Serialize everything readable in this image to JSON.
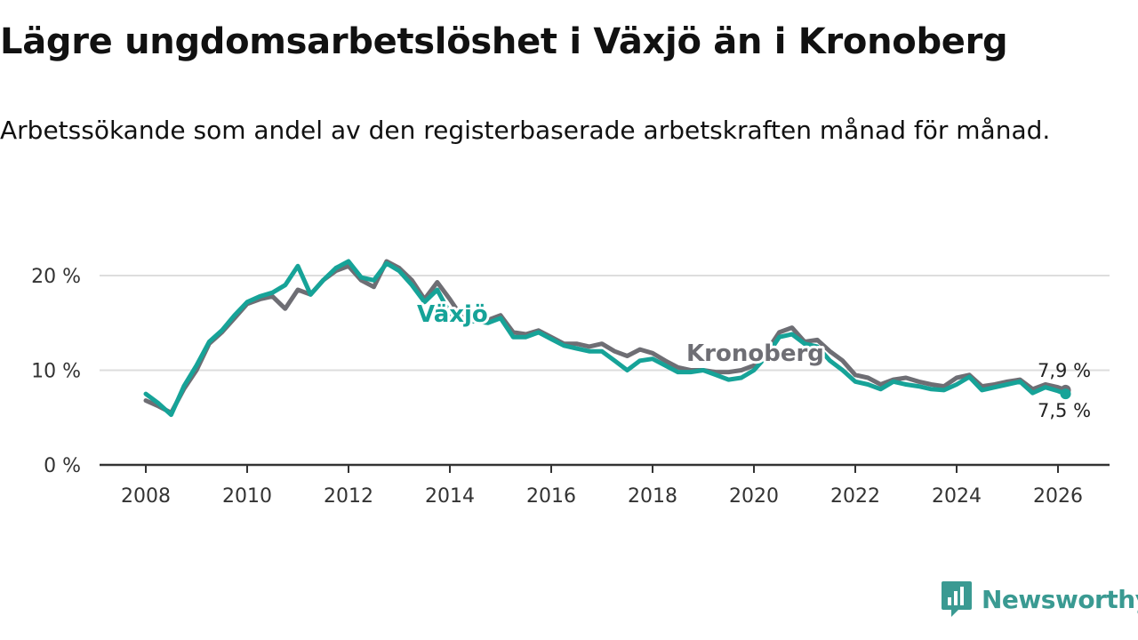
{
  "title": "Lägre ungdomsarbetslöshet i Växjö än i Kronoberg",
  "subtitle": "Arbetssökande som andel av den registerbaserade arbetskraften månad för månad.",
  "brand": {
    "name": "Newsworthy",
    "icon": "chart-bubble-icon",
    "color": "#3a9a92"
  },
  "colors": {
    "vaxjo": "#16a398",
    "kronoberg": "#6e6e74",
    "grid": "#dddddd",
    "axis": "#333333"
  },
  "chart_data": {
    "type": "line",
    "title": "Lägre ungdomsarbetslöshet i Växjö än i Kronoberg",
    "xlabel": "",
    "ylabel": "",
    "xlim": [
      2007.5,
      2026.5
    ],
    "ylim": [
      0,
      22
    ],
    "y_ticks": [
      0,
      10,
      20
    ],
    "y_tick_labels": [
      "0 %",
      "10 %",
      "20 %"
    ],
    "x_ticks": [
      2008,
      2010,
      2012,
      2014,
      2016,
      2018,
      2020,
      2022,
      2024,
      2026
    ],
    "x_tick_labels": [
      "2008",
      "2010",
      "2012",
      "2014",
      "2016",
      "2018",
      "2020",
      "2022",
      "2024",
      "2026"
    ],
    "series": [
      {
        "name": "Kronoberg",
        "label": "Kronoberg",
        "end_label": "7,9 %",
        "x": [
          2008.0,
          2008.25,
          2008.5,
          2008.75,
          2009.0,
          2009.25,
          2009.5,
          2009.75,
          2010.0,
          2010.25,
          2010.5,
          2010.75,
          2011.0,
          2011.25,
          2011.5,
          2011.75,
          2012.0,
          2012.25,
          2012.5,
          2012.75,
          2013.0,
          2013.25,
          2013.5,
          2013.75,
          2014.0,
          2014.25,
          2014.5,
          2014.75,
          2015.0,
          2015.25,
          2015.5,
          2015.75,
          2016.0,
          2016.25,
          2016.5,
          2016.75,
          2017.0,
          2017.25,
          2017.5,
          2017.75,
          2018.0,
          2018.25,
          2018.5,
          2018.75,
          2019.0,
          2019.25,
          2019.5,
          2019.75,
          2020.0,
          2020.25,
          2020.5,
          2020.75,
          2021.0,
          2021.25,
          2021.5,
          2021.75,
          2022.0,
          2022.25,
          2022.5,
          2022.75,
          2023.0,
          2023.25,
          2023.5,
          2023.75,
          2024.0,
          2024.25,
          2024.5,
          2024.75,
          2025.0,
          2025.25,
          2025.5,
          2025.75,
          2026.0,
          2026.15
        ],
        "values": [
          6.8,
          6.2,
          5.5,
          8.0,
          10.0,
          12.8,
          14.0,
          15.5,
          17.0,
          17.5,
          17.8,
          16.5,
          18.5,
          18.0,
          19.5,
          20.5,
          21.0,
          19.5,
          18.8,
          21.5,
          20.8,
          19.5,
          17.5,
          19.3,
          17.5,
          15.5,
          15.5,
          15.3,
          15.8,
          14.0,
          13.8,
          14.2,
          13.5,
          12.8,
          12.8,
          12.5,
          12.8,
          12.0,
          11.5,
          12.2,
          11.8,
          11.0,
          10.3,
          10.0,
          10.0,
          9.8,
          9.8,
          10.0,
          10.5,
          12.0,
          14.0,
          14.5,
          13.0,
          13.2,
          12.0,
          11.0,
          9.5,
          9.2,
          8.5,
          9.0,
          9.2,
          8.8,
          8.5,
          8.3,
          9.2,
          9.5,
          8.3,
          8.5,
          8.8,
          9.0,
          8.0,
          8.5,
          8.2,
          7.9
        ]
      },
      {
        "name": "Växjö",
        "label": "Växjö",
        "end_label": "7,5 %",
        "x": [
          2008.0,
          2008.25,
          2008.5,
          2008.75,
          2009.0,
          2009.25,
          2009.5,
          2009.75,
          2010.0,
          2010.25,
          2010.5,
          2010.75,
          2011.0,
          2011.25,
          2011.5,
          2011.75,
          2012.0,
          2012.25,
          2012.5,
          2012.75,
          2013.0,
          2013.25,
          2013.5,
          2013.75,
          2014.0,
          2014.25,
          2014.5,
          2014.75,
          2015.0,
          2015.25,
          2015.5,
          2015.75,
          2016.0,
          2016.25,
          2016.5,
          2016.75,
          2017.0,
          2017.25,
          2017.5,
          2017.75,
          2018.0,
          2018.25,
          2018.5,
          2018.75,
          2019.0,
          2019.25,
          2019.5,
          2019.75,
          2020.0,
          2020.25,
          2020.5,
          2020.75,
          2021.0,
          2021.25,
          2021.5,
          2021.75,
          2022.0,
          2022.25,
          2022.5,
          2022.75,
          2023.0,
          2023.25,
          2023.5,
          2023.75,
          2024.0,
          2024.25,
          2024.5,
          2024.75,
          2025.0,
          2025.25,
          2025.5,
          2025.75,
          2026.0,
          2026.15
        ],
        "values": [
          7.5,
          6.5,
          5.3,
          8.3,
          10.5,
          13.0,
          14.2,
          15.8,
          17.2,
          17.8,
          18.2,
          19.0,
          21.0,
          18.0,
          19.5,
          20.8,
          21.5,
          19.8,
          19.5,
          21.3,
          20.5,
          19.0,
          17.2,
          18.5,
          16.0,
          15.0,
          15.2,
          15.0,
          15.5,
          13.5,
          13.5,
          14.0,
          13.3,
          12.6,
          12.3,
          12.0,
          12.0,
          11.0,
          10.0,
          11.0,
          11.2,
          10.5,
          9.8,
          9.8,
          10.0,
          9.5,
          9.0,
          9.2,
          10.0,
          11.5,
          13.5,
          13.8,
          12.8,
          12.5,
          11.0,
          10.0,
          8.8,
          8.5,
          8.0,
          8.8,
          8.5,
          8.3,
          8.0,
          7.9,
          8.5,
          9.3,
          7.9,
          8.2,
          8.5,
          8.8,
          7.6,
          8.2,
          7.8,
          7.5
        ]
      }
    ]
  }
}
